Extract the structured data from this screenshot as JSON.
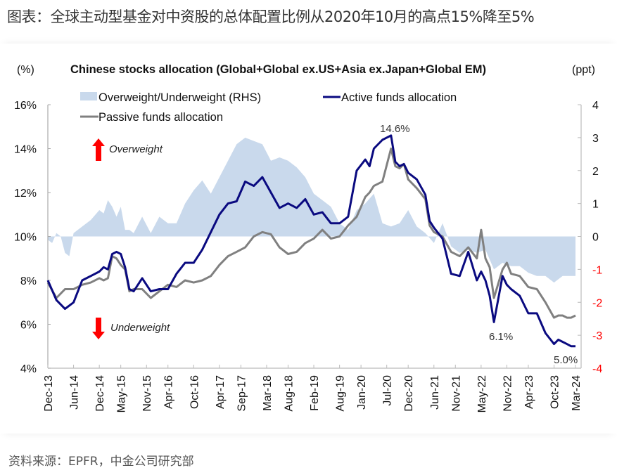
{
  "page": {
    "title": "图表：全球主动型基金对中资股的总体配置比例从2020年10月的高点15%降至5%",
    "source": "资料来源：EPFR，中金公司研究部"
  },
  "chart_data": {
    "type": "line",
    "title": "Chinese stocks allocation (Global+Global ex.US+Asia ex.Japan+Global EM)",
    "left_axis_label": "(%)",
    "right_axis_label": "(ppt)",
    "left_ylim": [
      4,
      16
    ],
    "right_ylim": [
      -4,
      4
    ],
    "left_ticks": [
      "4%",
      "6%",
      "8%",
      "10%",
      "12%",
      "14%",
      "16%"
    ],
    "left_tick_values": [
      4,
      6,
      8,
      10,
      12,
      14,
      16
    ],
    "right_ticks": [
      "-4",
      "-3",
      "-2",
      "-1",
      "0",
      "1",
      "2",
      "3",
      "4"
    ],
    "right_tick_values": [
      -4,
      -3,
      -2,
      -1,
      0,
      1,
      2,
      3,
      4
    ],
    "right_negative_tick_color": "#ff0000",
    "x_tick_labels": [
      "Dec-13",
      "Jun-14",
      "Dec-14",
      "May-15",
      "Nov-15",
      "Apr-16",
      "Oct-16",
      "Apr-17",
      "Sep-17",
      "Mar-18",
      "Aug-18",
      "Feb-19",
      "Aug-19",
      "Jan-20",
      "Jul-20",
      "Dec-20",
      "Jun-21",
      "Nov-21",
      "May-22",
      "Nov-22",
      "Apr-23",
      "Oct-23",
      "Mar-24"
    ],
    "x_tick_month_index": [
      0,
      6,
      12,
      17,
      23,
      28,
      34,
      40,
      45,
      51,
      56,
      62,
      68,
      73,
      79,
      84,
      90,
      95,
      101,
      107,
      112,
      118,
      123
    ],
    "x_start": "Dec-13",
    "x_end": "Mar-24",
    "legend": [
      "Overweight/Underweight (RHS)",
      "Active funds allocation",
      "Passive funds allocation"
    ],
    "legend_placement": "top-left",
    "annotations": {
      "peak": "14.6%",
      "trough_2022": "6.1%",
      "latest": "5.0%",
      "overweight": "Overweight",
      "underweight": "Underweight"
    },
    "colors": {
      "active": "#0a0a80",
      "passive": "#808080",
      "ow_uw": "#c9d9ec",
      "arrow": "#ff0000"
    },
    "series": [
      {
        "name": "Active funds allocation",
        "axis": "left",
        "x_month_index": [
          0,
          2,
          4,
          6,
          8,
          10,
          12,
          13,
          14,
          15,
          16,
          17,
          18,
          19,
          20,
          22,
          24,
          26,
          28,
          30,
          32,
          34,
          36,
          38,
          40,
          42,
          44,
          46,
          48,
          50,
          52,
          54,
          56,
          58,
          60,
          62,
          64,
          66,
          68,
          70,
          72,
          74,
          75,
          76,
          78,
          80,
          81,
          82,
          83,
          84,
          86,
          88,
          89,
          90,
          92,
          94,
          96,
          98,
          100,
          101,
          102,
          103,
          104,
          106,
          107,
          108,
          110,
          112,
          114,
          116,
          118,
          119,
          120,
          121,
          122,
          123
        ],
        "values": [
          8.0,
          7.1,
          6.7,
          7.0,
          8.0,
          8.2,
          8.4,
          8.6,
          8.5,
          9.2,
          9.3,
          9.2,
          8.6,
          7.6,
          7.5,
          8.1,
          7.5,
          7.6,
          7.6,
          8.3,
          8.8,
          8.8,
          9.4,
          10.2,
          11.0,
          11.5,
          11.6,
          12.5,
          12.3,
          12.7,
          12.0,
          11.3,
          11.5,
          11.3,
          11.7,
          11.0,
          11.1,
          10.6,
          10.6,
          10.9,
          13.0,
          13.5,
          13.2,
          14.0,
          14.4,
          14.6,
          13.4,
          13.2,
          13.3,
          12.9,
          12.6,
          11.9,
          10.7,
          10.4,
          9.9,
          8.3,
          8.2,
          9.3,
          8.0,
          8.4,
          8.0,
          7.3,
          6.1,
          8.2,
          7.8,
          7.6,
          7.3,
          6.5,
          6.5,
          5.6,
          5.1,
          5.3,
          5.2,
          5.1,
          5.0,
          5.0
        ]
      },
      {
        "name": "Passive funds allocation",
        "axis": "left",
        "x_month_index": [
          0,
          2,
          4,
          6,
          8,
          10,
          12,
          13,
          14,
          15,
          16,
          17,
          18,
          19,
          20,
          22,
          24,
          26,
          28,
          30,
          32,
          34,
          36,
          38,
          40,
          42,
          44,
          46,
          48,
          50,
          52,
          54,
          56,
          58,
          60,
          62,
          64,
          66,
          68,
          70,
          72,
          74,
          75,
          76,
          78,
          80,
          81,
          82,
          83,
          84,
          86,
          88,
          89,
          90,
          92,
          94,
          96,
          98,
          100,
          101,
          102,
          103,
          104,
          106,
          107,
          108,
          110,
          112,
          114,
          116,
          118,
          119,
          120,
          121,
          122,
          123
        ],
        "values": [
          7.9,
          7.2,
          7.6,
          7.6,
          7.8,
          7.9,
          8.1,
          8.0,
          8.1,
          9.1,
          9.0,
          8.7,
          8.5,
          7.5,
          7.6,
          7.6,
          7.2,
          7.5,
          7.8,
          7.7,
          8.0,
          7.9,
          8.0,
          8.2,
          8.7,
          9.1,
          9.3,
          9.5,
          10.0,
          10.2,
          10.1,
          9.5,
          9.2,
          9.3,
          9.7,
          9.9,
          10.3,
          9.9,
          10.0,
          10.5,
          10.9,
          11.8,
          12.0,
          12.3,
          12.5,
          14.0,
          13.2,
          13.1,
          13.3,
          12.6,
          12.2,
          11.7,
          10.5,
          10.2,
          10.0,
          9.3,
          9.1,
          9.5,
          9.0,
          10.3,
          9.0,
          8.6,
          7.2,
          8.5,
          8.8,
          8.3,
          8.2,
          7.7,
          7.6,
          7.0,
          6.3,
          6.4,
          6.4,
          6.3,
          6.3,
          6.4
        ]
      },
      {
        "name": "Overweight/Underweight (RHS)",
        "axis": "right",
        "type": "area",
        "x_month_index": [
          0,
          1,
          2,
          3,
          4,
          5,
          6,
          8,
          10,
          12,
          13,
          14,
          15,
          16,
          17,
          18,
          19,
          20,
          22,
          24,
          26,
          28,
          30,
          32,
          34,
          36,
          38,
          40,
          42,
          44,
          46,
          48,
          50,
          52,
          54,
          56,
          58,
          60,
          62,
          64,
          66,
          68,
          70,
          72,
          74,
          76,
          78,
          80,
          82,
          84,
          86,
          88,
          90,
          92,
          94,
          96,
          98,
          100,
          102,
          104,
          106,
          108,
          110,
          112,
          114,
          116,
          118,
          120,
          122,
          123
        ],
        "values": [
          -0.1,
          -0.2,
          0.1,
          0.0,
          -0.5,
          -0.6,
          0.1,
          0.3,
          0.5,
          0.8,
          0.7,
          1.1,
          0.9,
          0.6,
          0.9,
          0.2,
          0.2,
          0.1,
          0.6,
          0.1,
          0.6,
          0.4,
          0.4,
          1.0,
          1.4,
          1.7,
          1.3,
          1.8,
          2.3,
          2.8,
          3.0,
          2.9,
          2.8,
          2.3,
          2.4,
          2.3,
          2.1,
          1.8,
          1.3,
          1.1,
          0.9,
          0.4,
          0.2,
          0.8,
          1.0,
          1.3,
          0.4,
          0.3,
          0.4,
          0.8,
          0.3,
          0.1,
          -0.2,
          0.4,
          -0.3,
          -0.5,
          -0.4,
          -0.5,
          -0.4,
          -1.0,
          -0.8,
          -0.9,
          -0.9,
          -1.1,
          -1.2,
          -1.2,
          -1.4,
          -1.2,
          -1.2,
          -1.2
        ]
      }
    ]
  }
}
